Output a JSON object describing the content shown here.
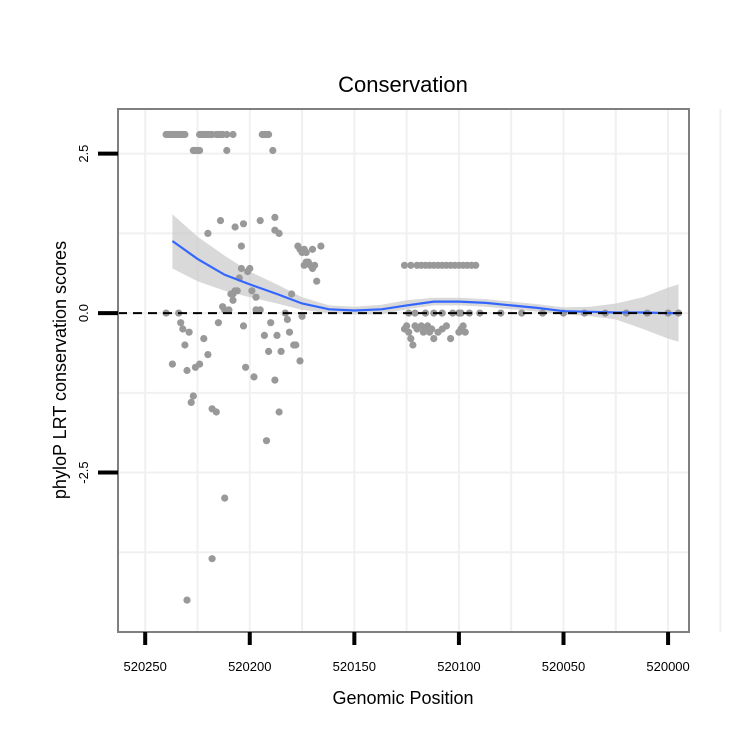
{
  "chart_data": {
    "type": "scatter",
    "title": "Conservation",
    "xlabel": "Genomic Position",
    "ylabel": "phyloP LRT conservation scores",
    "x_reversed": true,
    "xlim": [
      520263,
      519990
    ],
    "ylim": [
      -5.0,
      3.2
    ],
    "x_ticks": [
      520250,
      520200,
      520150,
      520100,
      520050,
      520000
    ],
    "x_tick_labels": [
      "520250",
      "520200",
      "520150",
      "520100",
      "520050",
      "520000"
    ],
    "y_ticks": [
      2.5,
      0.0,
      -2.5
    ],
    "y_tick_labels": [
      "2.5",
      "0.0",
      "-2.5"
    ],
    "grid": true,
    "reference_line": {
      "y": 0,
      "style": "dashed",
      "color": "#000000"
    },
    "colors": {
      "points": "#999999",
      "smooth": "#3366ff",
      "ribbon": "#cccccc",
      "border": "#7f7f7f",
      "grid": "#f0f0f0"
    },
    "series": [
      {
        "name": "points",
        "x": [
          520240,
          520239,
          520238,
          520237,
          520236,
          520235,
          520234,
          520233,
          520232,
          520231,
          520224,
          520223,
          520222,
          520221,
          520220,
          520219,
          520218,
          520216,
          520215,
          520214,
          520213,
          520211,
          520208,
          520227,
          520226,
          520225,
          520224,
          520211,
          520194,
          520193,
          520192,
          520191,
          520189,
          520188,
          520240,
          520237,
          520234,
          520233,
          520232,
          520231,
          520230,
          520229,
          520228,
          520227,
          520226,
          520224,
          520222,
          520220,
          520218,
          520216,
          520215,
          520213,
          520212,
          520210,
          520209,
          520208,
          520207,
          520206,
          520205,
          520204,
          520203,
          520202,
          520201,
          520200,
          520199,
          520198,
          520197,
          520195,
          520193,
          520191,
          520190,
          520188,
          520187,
          520186,
          520185,
          520183,
          520182,
          520181,
          520180,
          520179,
          520178,
          520176,
          520175,
          520174,
          520173,
          520172,
          520171,
          520170,
          520169,
          520168,
          520220,
          520214,
          520207,
          520204,
          520203,
          520195,
          520188,
          520186,
          520177,
          520176,
          520175,
          520174,
          520173,
          520170,
          520166,
          520212,
          520230,
          520218,
          520197,
          520208,
          520192,
          520126,
          520123,
          520120,
          520118,
          520116,
          520114,
          520112,
          520110,
          520108,
          520106,
          520104,
          520102,
          520100,
          520098,
          520096,
          520094,
          520092,
          520126,
          520125,
          520124,
          520123,
          520122,
          520121,
          520120,
          520118,
          520117,
          520116,
          520115,
          520114,
          520113,
          520112,
          520110,
          520108,
          520106,
          520104,
          520100,
          520099,
          520098,
          520097,
          520124,
          520121,
          520116,
          520112,
          520108,
          520103,
          520099,
          520100,
          520095,
          520090,
          520080,
          520070,
          520060,
          520050,
          520040,
          520030,
          520020,
          520010,
          520000,
          519995
        ],
        "y": [
          2.8,
          2.8,
          2.8,
          2.8,
          2.8,
          2.8,
          2.8,
          2.8,
          2.8,
          2.8,
          2.8,
          2.8,
          2.8,
          2.8,
          2.8,
          2.8,
          2.8,
          2.8,
          2.8,
          2.8,
          2.8,
          2.8,
          2.8,
          2.55,
          2.55,
          2.55,
          2.55,
          2.55,
          2.8,
          2.8,
          2.8,
          2.8,
          2.55,
          1.5,
          0.0,
          -0.8,
          0.0,
          -0.15,
          -0.25,
          -0.5,
          -0.9,
          -0.3,
          -1.4,
          -1.3,
          -0.85,
          -0.8,
          -0.4,
          -0.65,
          -1.5,
          -1.55,
          -0.15,
          0.1,
          0.05,
          0.05,
          0.3,
          0.3,
          0.35,
          0.35,
          0.55,
          0.7,
          -0.2,
          -0.85,
          0.65,
          0.7,
          0.35,
          -1.0,
          0.25,
          0.05,
          -0.35,
          -0.6,
          -0.15,
          -1.05,
          -0.35,
          -1.55,
          -0.6,
          0.0,
          -0.1,
          -0.3,
          0.3,
          -0.5,
          -0.5,
          -0.75,
          -0.05,
          0.75,
          0.8,
          0.8,
          0.75,
          0.7,
          0.75,
          0.5,
          1.25,
          1.45,
          1.35,
          1.05,
          1.4,
          1.45,
          1.3,
          1.25,
          1.05,
          1.0,
          0.95,
          1.0,
          0.95,
          1.0,
          1.05,
          -2.9,
          -4.5,
          -3.85,
          0.05,
          0.2,
          -2.0,
          0.75,
          0.75,
          0.75,
          0.75,
          0.75,
          0.75,
          0.75,
          0.75,
          0.75,
          0.75,
          0.75,
          0.75,
          0.75,
          0.75,
          0.75,
          0.75,
          0.75,
          -0.25,
          -0.2,
          -0.3,
          -0.4,
          -0.5,
          -0.2,
          -0.25,
          -0.2,
          -0.3,
          -0.25,
          -0.2,
          -0.3,
          -0.25,
          -0.4,
          -0.3,
          -0.25,
          -0.2,
          -0.4,
          -0.3,
          -0.25,
          -0.2,
          -0.3,
          0.0,
          0.0,
          0.0,
          0.0,
          0.0,
          0.0,
          0.0,
          0.0,
          0.0,
          0.0,
          0.0,
          0.0,
          0.0,
          0.0,
          0.0,
          0.0,
          0.0,
          0.0,
          0.0,
          0.0
        ]
      },
      {
        "name": "loess",
        "x": [
          520237,
          520225,
          520212,
          520200,
          520187,
          520175,
          520162,
          520150,
          520137,
          520125,
          520112,
          520100,
          520087,
          520075,
          520062,
          520050,
          520037,
          520025,
          520012,
          520000,
          519995
        ],
        "y": [
          1.13,
          0.85,
          0.6,
          0.45,
          0.3,
          0.15,
          0.06,
          0.04,
          0.06,
          0.12,
          0.18,
          0.18,
          0.16,
          0.12,
          0.08,
          0.03,
          0.02,
          0.01,
          0.01,
          0.0,
          0.0
        ],
        "ymin": [
          0.7,
          0.5,
          0.35,
          0.25,
          0.15,
          0.05,
          0.0,
          -0.02,
          -0.02,
          0.06,
          0.12,
          0.12,
          0.1,
          0.06,
          0.02,
          -0.02,
          -0.05,
          -0.1,
          -0.25,
          -0.4,
          -0.45
        ],
        "ymax": [
          1.55,
          1.2,
          0.9,
          0.65,
          0.45,
          0.25,
          0.12,
          0.1,
          0.13,
          0.2,
          0.24,
          0.24,
          0.22,
          0.18,
          0.14,
          0.09,
          0.1,
          0.15,
          0.25,
          0.4,
          0.45
        ]
      }
    ]
  }
}
